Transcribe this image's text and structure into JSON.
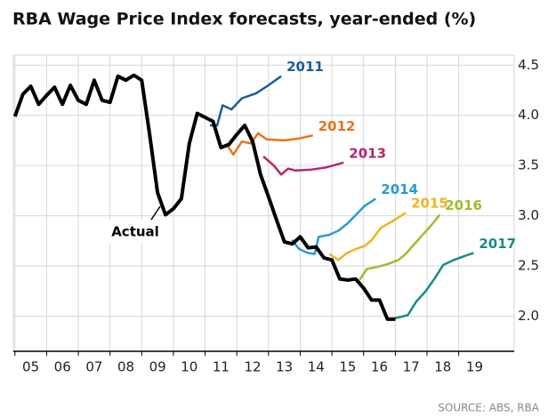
{
  "chart_data": {
    "type": "line",
    "title": "RBA Wage Price Index forecasts, year-ended (%)",
    "source": "SOURCE: ABS, RBA",
    "xlim": [
      2004.95,
      2020.75
    ],
    "ylim": [
      1.65,
      4.6
    ],
    "yticks": [
      {
        "value": 2,
        "label": "2.0"
      },
      2.5,
      {
        "value": 3,
        "label": "3.0"
      },
      3.5,
      {
        "value": 4,
        "label": "4.0"
      },
      4.5
    ],
    "xticks": [
      {
        "value": 2005,
        "label": "05"
      },
      {
        "value": 2006,
        "label": "06"
      },
      {
        "value": 2007,
        "label": "07"
      },
      {
        "value": 2008,
        "label": "08"
      },
      {
        "value": 2009,
        "label": "09"
      },
      {
        "value": 2010,
        "label": "10"
      },
      {
        "value": 2011,
        "label": "11"
      },
      {
        "value": 2012,
        "label": "12"
      },
      {
        "value": 2013,
        "label": "13"
      },
      {
        "value": 2014,
        "label": "14"
      },
      {
        "value": 2015,
        "label": "15"
      },
      {
        "value": 2016,
        "label": "16"
      },
      {
        "value": 2017,
        "label": "17"
      },
      {
        "value": 2018,
        "label": "18"
      },
      {
        "value": 2019,
        "label": "19"
      }
    ],
    "grid": true,
    "series": [
      {
        "name": "Actual",
        "color": "#000000",
        "x": [
          2005,
          2005.25,
          2005.5,
          2005.75,
          2006,
          2006.25,
          2006.5,
          2006.75,
          2007,
          2007.25,
          2007.5,
          2007.75,
          2008,
          2008.25,
          2008.5,
          2008.75,
          2009,
          2009.25,
          2009.5,
          2009.75,
          2010,
          2010.25,
          2010.5,
          2010.75,
          2011,
          2011.25,
          2011.5,
          2011.75,
          2012,
          2012.25,
          2012.5,
          2012.75,
          2013,
          2013.25,
          2013.5,
          2013.75,
          2014,
          2014.25,
          2014.5,
          2014.75,
          2015,
          2015.25,
          2015.5,
          2015.75,
          2016,
          2016.25,
          2016.5,
          2016.75,
          2017
        ],
        "values": [
          3.99,
          4.21,
          4.29,
          4.11,
          4.2,
          4.28,
          4.11,
          4.3,
          4.15,
          4.11,
          4.35,
          4.15,
          4.13,
          4.39,
          4.35,
          4.4,
          4.35,
          3.81,
          3.23,
          3.01,
          3.07,
          3.17,
          3.72,
          4.02,
          3.98,
          3.94,
          3.68,
          3.71,
          3.81,
          3.9,
          3.74,
          3.41,
          3.19,
          2.96,
          2.74,
          2.72,
          2.79,
          2.68,
          2.69,
          2.58,
          2.56,
          2.37,
          2.36,
          2.37,
          2.28,
          2.16,
          2.16,
          1.97,
          1.97
        ]
      },
      {
        "name": "2011",
        "color": "#1a5e96",
        "x": [
          2011.15,
          2011.38,
          2011.55,
          2011.83,
          2012.16,
          2012.61,
          2012.95,
          2013.4
        ],
        "values": [
          3.9,
          3.9,
          4.1,
          4.06,
          4.17,
          4.22,
          4.29,
          4.39
        ]
      },
      {
        "name": "2012",
        "color": "#e8731e",
        "x": [
          2011.66,
          2011.89,
          2012.16,
          2012.44,
          2012.67,
          2012.95,
          2013.5,
          2013.96,
          2014.4
        ],
        "values": [
          3.72,
          3.61,
          3.74,
          3.72,
          3.82,
          3.76,
          3.75,
          3.77,
          3.8
        ]
      },
      {
        "name": "2013",
        "color": "#b5266e",
        "x": [
          2012.84,
          2013.17,
          2013.4,
          2013.62,
          2013.85,
          2014.35,
          2014.8,
          2015.37
        ],
        "values": [
          3.59,
          3.5,
          3.41,
          3.47,
          3.45,
          3.46,
          3.48,
          3.53
        ]
      },
      {
        "name": "2014",
        "color": "#2a9ad6",
        "x": [
          2013.74,
          2013.96,
          2014.24,
          2014.46,
          2014.58,
          2014.91,
          2015.2,
          2015.48,
          2015.76,
          2016.04,
          2016.38
        ],
        "values": [
          2.76,
          2.67,
          2.63,
          2.62,
          2.79,
          2.81,
          2.85,
          2.92,
          3.01,
          3.1,
          3.17
        ]
      },
      {
        "name": "2015",
        "color": "#f0b323",
        "x": [
          2014.92,
          2015.2,
          2015.48,
          2015.76,
          2016.04,
          2016.26,
          2016.54,
          2016.88,
          2017.33
        ],
        "values": [
          2.62,
          2.56,
          2.63,
          2.67,
          2.7,
          2.76,
          2.88,
          2.94,
          3.03
        ]
      },
      {
        "name": "2016",
        "color": "#9cbe2d",
        "x": [
          2015.87,
          2016.1,
          2016.43,
          2016.77,
          2017.1,
          2017.33,
          2017.72,
          2018.12,
          2018.4
        ],
        "values": [
          2.36,
          2.47,
          2.49,
          2.52,
          2.56,
          2.62,
          2.76,
          2.9,
          3.01
        ]
      },
      {
        "name": "2017",
        "color": "#1a8a8a",
        "x": [
          2016.88,
          2017.39,
          2017.67,
          2017.96,
          2018.23,
          2018.51,
          2018.85,
          2019.19,
          2019.47
        ],
        "values": [
          1.97,
          2.01,
          2.15,
          2.25,
          2.37,
          2.51,
          2.56,
          2.6,
          2.63
        ]
      }
    ]
  }
}
